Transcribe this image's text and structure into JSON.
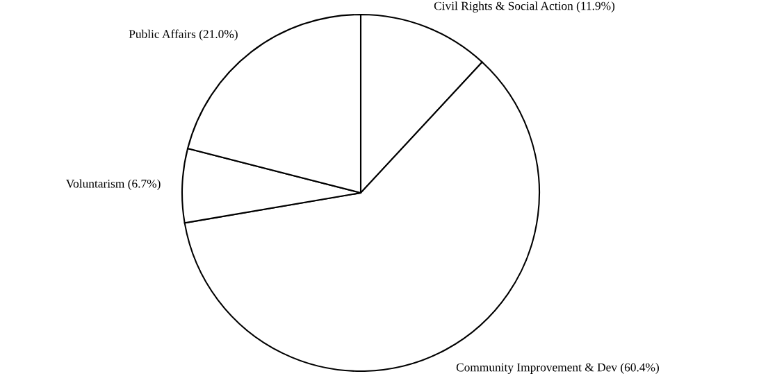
{
  "chart_data": {
    "type": "pie",
    "categories": [
      "Civil Rights & Social Action",
      "Community Improvement & Dev",
      "Voluntarism",
      "Public Affairs"
    ],
    "values": [
      11.9,
      60.4,
      6.7,
      21.0
    ],
    "value_labels": [
      "(11.9%)",
      "(60.4%)",
      "(6.7%)",
      "(21.0%)"
    ],
    "colors": [
      "#ffffff",
      "#ffffff",
      "#ffffff",
      "#ffffff"
    ]
  }
}
